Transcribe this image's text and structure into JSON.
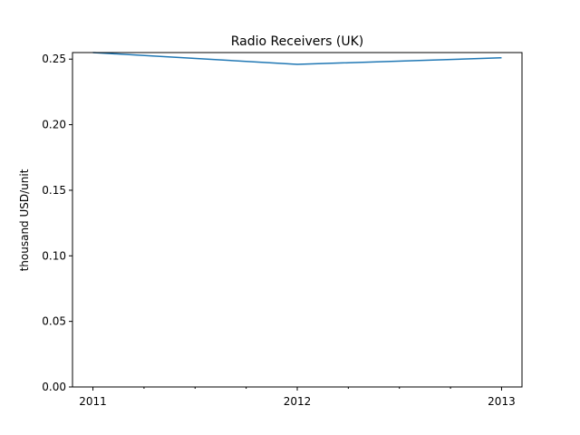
{
  "chart_data": {
    "type": "line",
    "title": "Radio Receivers (UK)",
    "xlabel": "",
    "ylabel": "thousand USD/unit",
    "x": [
      2011,
      2012,
      2013
    ],
    "x_tick_labels": [
      "2011",
      "2012",
      "2013"
    ],
    "series": [
      {
        "values": [
          0.255,
          0.246,
          0.251
        ],
        "color": "#1f77b4"
      }
    ],
    "y_ticks": [
      0.0,
      0.05,
      0.1,
      0.15,
      0.2,
      0.25
    ],
    "y_tick_labels": [
      "0.00",
      "0.05",
      "0.10",
      "0.15",
      "0.20",
      "0.25"
    ],
    "xlim": [
      2010.9,
      2013.1
    ],
    "ylim": [
      0,
      0.255
    ],
    "grid": false,
    "legend": "none"
  }
}
